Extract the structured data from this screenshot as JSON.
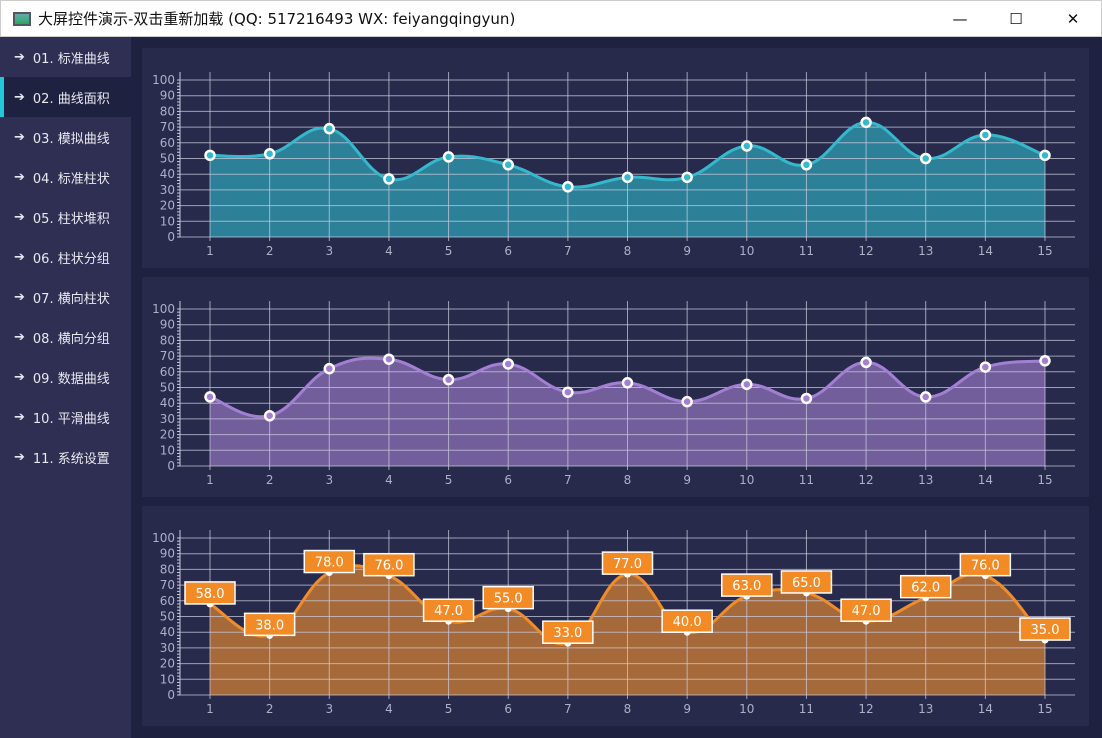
{
  "window": {
    "title": "大屏控件演示-双击重新加载 (QQ: 517216493  WX: feiyangqingyun)",
    "minimize": "—",
    "maximize": "☐",
    "close": "✕"
  },
  "sidebar": {
    "items": [
      {
        "label": "01. 标准曲线"
      },
      {
        "label": "02. 曲线面积",
        "active": true
      },
      {
        "label": "03. 模拟曲线"
      },
      {
        "label": "04. 标准柱状"
      },
      {
        "label": "05. 柱状堆积"
      },
      {
        "label": "06. 柱状分组"
      },
      {
        "label": "07. 横向柱状"
      },
      {
        "label": "08. 横向分组"
      },
      {
        "label": "09. 数据曲线"
      },
      {
        "label": "10. 平滑曲线"
      },
      {
        "label": "11. 系统设置"
      }
    ],
    "icon": "arrow-right-icon",
    "accent": "#22c8d8"
  },
  "chart_data": [
    {
      "type": "area",
      "x": [
        1,
        2,
        3,
        4,
        5,
        6,
        7,
        8,
        9,
        10,
        11,
        12,
        13,
        14,
        15
      ],
      "values": [
        52,
        53,
        69,
        37,
        51,
        46,
        32,
        38,
        38,
        58,
        46,
        73,
        50,
        65,
        52
      ],
      "ylim": [
        0,
        100
      ],
      "yticks": [
        0,
        10,
        20,
        30,
        40,
        50,
        60,
        70,
        80,
        90,
        100
      ],
      "grid": true,
      "smooth": true,
      "line_color": "#35b8cc",
      "fill_color": "#2c8198",
      "data_labels": false
    },
    {
      "type": "area",
      "x": [
        1,
        2,
        3,
        4,
        5,
        6,
        7,
        8,
        9,
        10,
        11,
        12,
        13,
        14,
        15
      ],
      "values": [
        44,
        32,
        62,
        68,
        55,
        65,
        47,
        53,
        41,
        52,
        43,
        66,
        44,
        63,
        67
      ],
      "ylim": [
        0,
        100
      ],
      "yticks": [
        0,
        10,
        20,
        30,
        40,
        50,
        60,
        70,
        80,
        90,
        100
      ],
      "grid": true,
      "smooth": true,
      "line_color": "#a37fd4",
      "fill_color": "#735e9c",
      "data_labels": false
    },
    {
      "type": "area",
      "x": [
        1,
        2,
        3,
        4,
        5,
        6,
        7,
        8,
        9,
        10,
        11,
        12,
        13,
        14,
        15
      ],
      "values": [
        58.0,
        38.0,
        78.0,
        76.0,
        47.0,
        55.0,
        33.0,
        77.0,
        40.0,
        63.0,
        65.0,
        47.0,
        62.0,
        76.0,
        35.0
      ],
      "labels": [
        "58.0",
        "38.0",
        "78.0",
        "76.0",
        "47.0",
        "55.0",
        "33.0",
        "77.0",
        "40.0",
        "63.0",
        "65.0",
        "47.0",
        "62.0",
        "76.0",
        "35.0"
      ],
      "ylim": [
        0,
        100
      ],
      "yticks": [
        0,
        10,
        20,
        30,
        40,
        50,
        60,
        70,
        80,
        90,
        100
      ],
      "grid": true,
      "smooth": true,
      "line_color": "#f08c2a",
      "fill_color": "#a66a3a",
      "data_labels": true,
      "label_color": "#f28a26"
    }
  ]
}
